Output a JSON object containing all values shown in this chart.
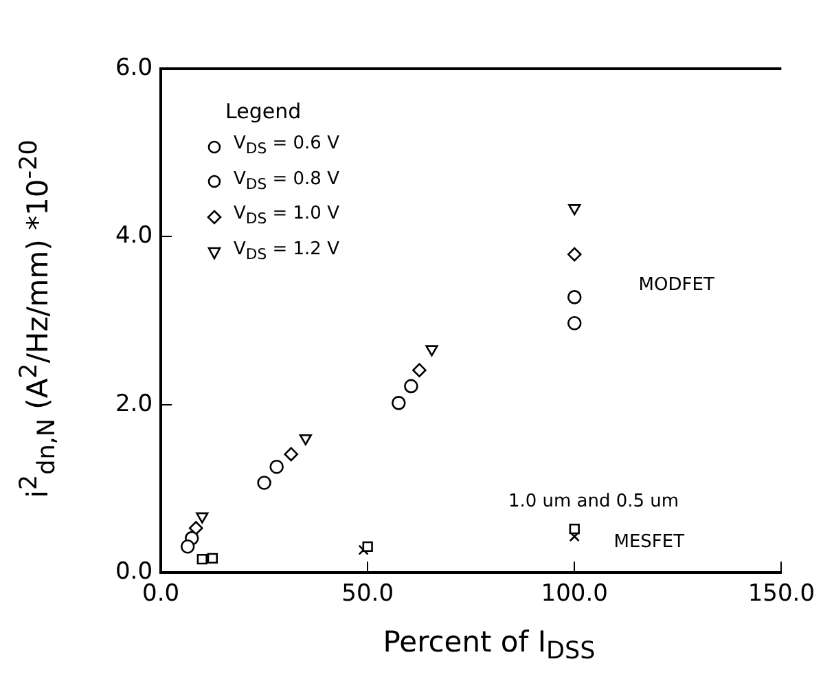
{
  "chart_data": {
    "type": "scatter",
    "xlabel": "Percent of I$_{DSS}$",
    "ylabel": "i$^{2}$$_{dn,N}$ (A$^{2}$/Hz/mm) *10$^{-20}$",
    "legend_title": "Legend",
    "legend": "top left",
    "grid": false,
    "xlim": [
      0,
      150
    ],
    "xticks": [
      {
        "value": 0,
        "label": "0.0"
      },
      {
        "value": 50,
        "label": "50.0"
      },
      {
        "value": 100,
        "label": "100.0"
      },
      {
        "value": 150,
        "label": "150.0"
      }
    ],
    "ylim": [
      0,
      6
    ],
    "yticks": [
      {
        "value": 0,
        "label": "0.0"
      },
      {
        "value": 2,
        "label": "2.0"
      },
      {
        "value": 4,
        "label": "4.0"
      },
      {
        "value": 6,
        "label": "6.0"
      }
    ],
    "series": [
      {
        "name": "V$_{DS}$ = 0.6 V",
        "color": "#000000",
        "marker": "circle",
        "x": [
          6.5,
          25,
          57.5,
          100
        ],
        "values": [
          0.31,
          1.07,
          2.02,
          2.97
        ]
      },
      {
        "name": "V$_{DS}$ = 0.8 V",
        "color": "#000000",
        "marker": "circle",
        "x": [
          7.5,
          28,
          60.5,
          100
        ],
        "values": [
          0.41,
          1.26,
          2.22,
          3.28
        ]
      },
      {
        "name": "V$_{DS}$ = 1.0 V",
        "color": "#000000",
        "marker": "diamond",
        "x": [
          8.5,
          31.5,
          62.5,
          100
        ],
        "values": [
          0.53,
          1.41,
          2.41,
          3.79
        ]
      },
      {
        "name": "V$_{DS}$ = 1.2 V",
        "color": "#000000",
        "marker": "triangle",
        "x": [
          10,
          35,
          65.5,
          100
        ],
        "values": [
          0.67,
          1.6,
          2.66,
          4.34
        ]
      },
      {
        "color": "#000000",
        "marker": "square",
        "x": [
          10,
          12.5,
          50,
          100
        ],
        "values": [
          0.16,
          0.17,
          0.31,
          0.52
        ]
      },
      {
        "color": "#000000",
        "marker": "cross",
        "x": [
          49,
          100
        ],
        "values": [
          0.27,
          0.43
        ]
      }
    ],
    "annotations": [
      "MODFET",
      "1.0 um and 0.5 um",
      "MESFET"
    ]
  }
}
